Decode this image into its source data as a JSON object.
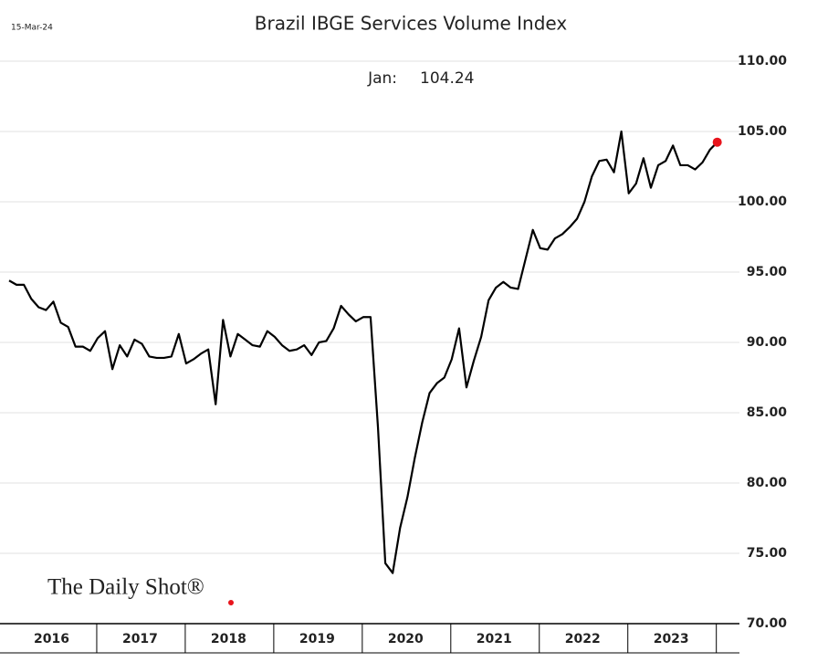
{
  "chart_data": {
    "type": "line",
    "title": "Brazil IBGE Services Volume Index",
    "date": "15-Mar-24",
    "source": "The Daily Shot®",
    "annotation_label": "Jan:",
    "categories": [
      null,
      null,
      null,
      null,
      null,
      null,
      "2016",
      null,
      null,
      null,
      null,
      null,
      null,
      null,
      null,
      null,
      null,
      null,
      "2017",
      null,
      null,
      null,
      null,
      null,
      null,
      null,
      null,
      null,
      null,
      null,
      "2018",
      null,
      null,
      null,
      null,
      null,
      null,
      null,
      null,
      null,
      null,
      null,
      "2019",
      null,
      null,
      null,
      null,
      null,
      null,
      null,
      null,
      null,
      null,
      null,
      "2020",
      null,
      null,
      null,
      null,
      null,
      null,
      null,
      null,
      null,
      null,
      null,
      "2021",
      null,
      null,
      null,
      null,
      null,
      null,
      null,
      null,
      null,
      null,
      null,
      "2022",
      null,
      null,
      null,
      null,
      null,
      null,
      null,
      null,
      null,
      null,
      null,
      "2023",
      null,
      null,
      null,
      null,
      null,
      null
    ],
    "series": [
      {
        "name": "Services Volume Index",
        "color": "#000000",
        "values": [
          94.4,
          94.1,
          94.1,
          93.1,
          92.5,
          92.3,
          92.9,
          91.4,
          91.1,
          89.7,
          89.7,
          89.4,
          90.3,
          90.8,
          88.1,
          89.8,
          89.0,
          90.2,
          89.9,
          89.0,
          88.9,
          88.9,
          89.0,
          90.6,
          88.5,
          88.8,
          89.2,
          89.5,
          85.6,
          91.6,
          89.0,
          90.6,
          90.2,
          89.8,
          89.7,
          90.8,
          90.4,
          89.8,
          89.4,
          89.5,
          89.8,
          89.1,
          90.0,
          90.1,
          91.0,
          92.6,
          92.0,
          91.5,
          91.8,
          91.8,
          84.0,
          74.3,
          73.6,
          76.8,
          79.0,
          81.8,
          84.3,
          86.4,
          87.1,
          87.5,
          88.8,
          91.0,
          86.8,
          88.7,
          90.4,
          93.0,
          93.9,
          94.3,
          93.9,
          93.8,
          95.9,
          98.0,
          96.7,
          96.6,
          97.4,
          97.7,
          98.2,
          98.8,
          100.0,
          101.8,
          102.9,
          103.0,
          102.1,
          105.0,
          100.6,
          101.3,
          103.1,
          101.0,
          102.6,
          102.9,
          104.0,
          102.6,
          102.6,
          102.3,
          102.8,
          103.7,
          104.24
        ]
      }
    ],
    "highlight_color": "#e8141c",
    "ylim": [
      70,
      110
    ],
    "yticks": [
      {
        "value": 70,
        "label": "70.00"
      },
      {
        "value": 75,
        "label": "75.00"
      },
      {
        "value": 80,
        "label": "80.00"
      },
      {
        "value": 85,
        "label": "85.00"
      },
      {
        "value": 90,
        "label": "90.00"
      },
      {
        "value": 95,
        "label": "95.00"
      },
      {
        "value": 100,
        "label": "100.00"
      },
      {
        "value": 105,
        "label": "105.00"
      },
      {
        "value": 110,
        "label": "110.00"
      }
    ],
    "grid": true
  }
}
